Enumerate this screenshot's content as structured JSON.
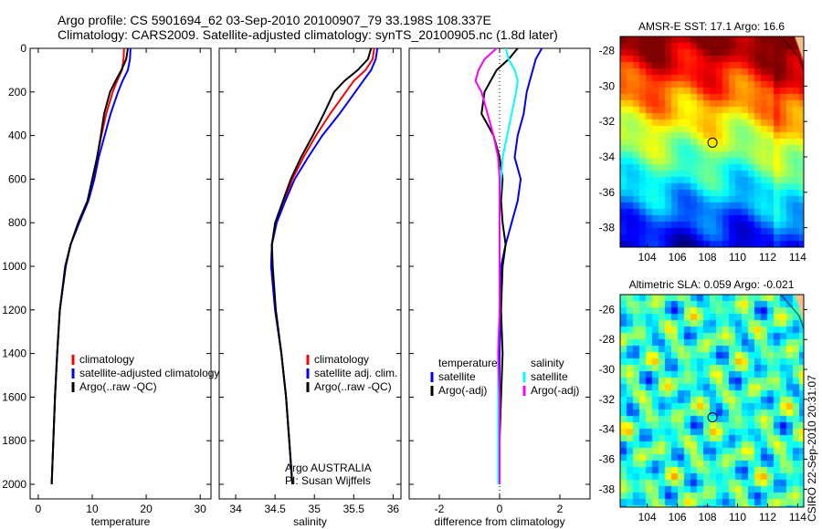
{
  "header": {
    "line1": "Argo profile: CS 5901694_62 03-Sep-2010 20100907_79 33.198S 108.337E",
    "line2": "Climatology: CARS2009. Satellite-adjusted climatology: synTS_20100905.nc (1.8d later)"
  },
  "footer_stamp": "CSIRO 22-Sep-2010 20:31:07",
  "colors": {
    "climatology": "#ff0000",
    "satellite": "#0000ff",
    "argo": "#000000",
    "sal_satellite": "#00ffff",
    "sal_argo": "#ff00ff"
  },
  "chart_data": [
    {
      "type": "line",
      "xlabel": "temperature",
      "xlim": [
        -1.5,
        32
      ],
      "ylim": [
        0,
        2067
      ],
      "y_reversed": true,
      "xticks": [
        "0",
        "10",
        "20",
        "30"
      ],
      "xtick_values": [
        0,
        10,
        20,
        30
      ],
      "yticks": [
        "0",
        "200",
        "400",
        "600",
        "800",
        "1000",
        "1200",
        "1400",
        "1600",
        "1800",
        "2000"
      ],
      "ytick_values": [
        0,
        200,
        400,
        600,
        800,
        1000,
        1200,
        1400,
        1600,
        1800,
        2000
      ],
      "depth": [
        0,
        50,
        100,
        150,
        200,
        300,
        400,
        500,
        600,
        700,
        800,
        900,
        1000,
        1200,
        1400,
        1600,
        1800,
        2000
      ],
      "series": [
        {
          "name": "climatology",
          "color": "#ff0000",
          "values": [
            15.9,
            15.8,
            15.5,
            14.6,
            13.8,
            12.6,
            11.7,
            10.9,
            10.2,
            9.2,
            7.5,
            6.0,
            5.0,
            4.0,
            3.5,
            3.1,
            2.8,
            2.5
          ]
        },
        {
          "name": "satellite-adjusted climatology",
          "color": "#0000ff",
          "values": [
            17.1,
            17.0,
            16.6,
            15.6,
            14.8,
            13.4,
            12.3,
            11.2,
            10.4,
            9.3,
            7.6,
            6.0,
            5.0,
            4.0,
            3.5,
            3.1,
            2.8,
            2.5
          ]
        },
        {
          "name": "Argo(..raw -QC)",
          "color": "#000000",
          "values": [
            16.6,
            16.3,
            15.4,
            14.3,
            13.3,
            12.2,
            11.6,
            10.9,
            10.0,
            9.1,
            7.4,
            6.0,
            5.1,
            4.0,
            3.5,
            3.1,
            2.8,
            2.5
          ]
        }
      ]
    },
    {
      "type": "line",
      "xlabel": "salinity",
      "xlim": [
        33.79,
        36.1
      ],
      "ylim": [
        0,
        2067
      ],
      "y_reversed": true,
      "xticks": [
        "34",
        "34.5",
        "35",
        "35.5",
        "36"
      ],
      "xtick_values": [
        34,
        34.5,
        35,
        35.5,
        36
      ],
      "depth": [
        0,
        50,
        100,
        150,
        200,
        300,
        400,
        500,
        600,
        700,
        800,
        900,
        1000,
        1200,
        1400,
        1600,
        1800,
        2000
      ],
      "series": [
        {
          "name": "climatology",
          "color": "#ff0000",
          "values": [
            35.76,
            35.74,
            35.65,
            35.5,
            35.4,
            35.2,
            35.02,
            34.86,
            34.72,
            34.62,
            34.52,
            34.46,
            34.45,
            34.5,
            34.58,
            34.64,
            34.68,
            34.72
          ]
        },
        {
          "name": "satellite adj. clim.",
          "color": "#0000ff",
          "values": [
            35.8,
            35.78,
            35.72,
            35.62,
            35.52,
            35.32,
            35.1,
            34.92,
            34.75,
            34.63,
            34.52,
            34.46,
            34.45,
            34.5,
            34.58,
            34.64,
            34.68,
            34.72
          ]
        },
        {
          "name": "Argo(..raw -QC)",
          "color": "#000000",
          "values": [
            35.72,
            35.68,
            35.55,
            35.38,
            35.25,
            35.12,
            34.98,
            34.83,
            34.7,
            34.6,
            34.5,
            34.46,
            34.47,
            34.51,
            34.58,
            34.64,
            34.68,
            34.72
          ]
        }
      ],
      "annotation": [
        "Argo AUSTRALIA",
        "PI: Susan Wijffels"
      ]
    },
    {
      "type": "line",
      "xlabel": "difference from climatology",
      "xlim": [
        -3,
        3
      ],
      "ylim": [
        0,
        2067
      ],
      "y_reversed": true,
      "xticks": [
        "-2",
        "0",
        "2"
      ],
      "xtick_values": [
        -2,
        0,
        2
      ],
      "depth": [
        0,
        50,
        100,
        150,
        200,
        300,
        400,
        500,
        600,
        700,
        800,
        900,
        1000,
        1200,
        1400,
        1600,
        1800,
        2000
      ],
      "legend_headers": [
        "temperature",
        "salinity"
      ],
      "series": [
        {
          "group": "temperature",
          "name": "satellite",
          "color": "#0000ff",
          "values": [
            1.4,
            1.2,
            1.1,
            1.0,
            0.9,
            0.8,
            0.6,
            0.5,
            0.7,
            0.6,
            0.4,
            0.2,
            0.05,
            0.03,
            0.0,
            0.0,
            0.0,
            0.0
          ]
        },
        {
          "group": "temperature",
          "name": "Argo(-adj)",
          "color": "#000000",
          "values": [
            0.6,
            0.3,
            -0.1,
            -0.3,
            -0.5,
            -0.6,
            -0.2,
            0.0,
            0.1,
            0.05,
            0.1,
            0.2,
            0.1,
            0.05,
            0.1,
            0.05,
            0.0,
            0.0
          ]
        },
        {
          "group": "salinity",
          "name": "satellite",
          "color": "#00ffff",
          "values": [
            0.2,
            0.3,
            0.5,
            0.6,
            0.55,
            0.4,
            0.25,
            0.1,
            0.05,
            0.0,
            0.0,
            0.0,
            0.0,
            0.0,
            -0.05,
            -0.05,
            -0.05,
            -0.05
          ]
        },
        {
          "group": "salinity",
          "name": "Argo(-adj)",
          "color": "#ff00ff",
          "values": [
            -0.1,
            -0.5,
            -0.7,
            -0.8,
            -0.6,
            -0.4,
            -0.2,
            -0.05,
            0.0,
            0.0,
            0.0,
            0.0,
            0.0,
            0.0,
            -0.05,
            0.0,
            0.0,
            0.0
          ]
        }
      ]
    },
    {
      "type": "heatmap",
      "title": "AMSR-E SST: 17.1 Argo: 16.6",
      "xlim": [
        102.2,
        114.4
      ],
      "ylim": [
        -39.1,
        -27.2
      ],
      "xticks": [
        "104",
        "106",
        "108",
        "110",
        "112",
        "114"
      ],
      "xtick_values": [
        104,
        106,
        108,
        110,
        112,
        114
      ],
      "yticks": [
        "-28",
        "-30",
        "-32",
        "-34",
        "-36",
        "-38"
      ],
      "ytick_values": [
        -28,
        -30,
        -32,
        -34,
        -36,
        -38
      ],
      "marker": {
        "lon": 108.337,
        "lat": -33.198
      }
    },
    {
      "type": "heatmap",
      "title": "Altimetric SLA: 0.059 Argo: -0.021",
      "xlim": [
        102.2,
        114.4
      ],
      "ylim": [
        -39.2,
        -25.0
      ],
      "xticks": [
        "104",
        "106",
        "108",
        "110",
        "112",
        "114"
      ],
      "xtick_values": [
        104,
        106,
        108,
        110,
        112,
        114
      ],
      "yticks": [
        "-26",
        "-28",
        "-30",
        "-32",
        "-34",
        "-36",
        "-38"
      ],
      "ytick_values": [
        -26,
        -28,
        -30,
        -32,
        -34,
        -36,
        -38
      ],
      "marker": {
        "lon": 108.337,
        "lat": -33.198
      }
    }
  ]
}
